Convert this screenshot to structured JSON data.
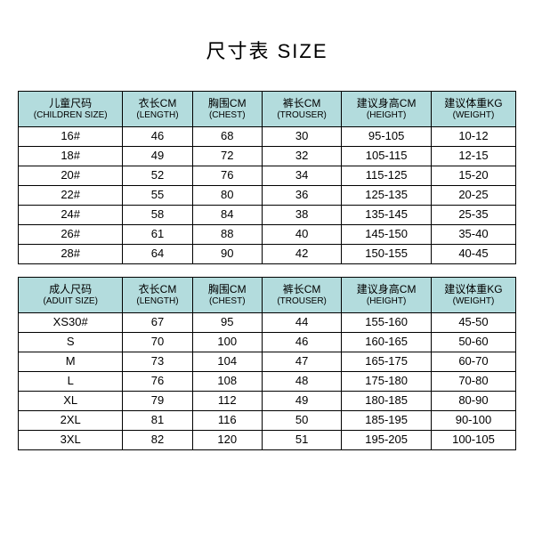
{
  "title": "尺寸表 SIZE",
  "colors": {
    "header_bg": "#b3dcdd",
    "border": "#000000",
    "background": "#ffffff",
    "text": "#000000"
  },
  "columns": [
    {
      "cn_child": "儿童尺码",
      "cn_adult": "成人尺码",
      "en_child": "(CHILDREN SIZE)",
      "en_adult": "(ADUIT SIZE)"
    },
    {
      "cn": "衣长CM",
      "en": "(LENGTH)"
    },
    {
      "cn": "胸围CM",
      "en": "(CHEST)"
    },
    {
      "cn": "裤长CM",
      "en": "(TROUSER)"
    },
    {
      "cn": "建议身高CM",
      "en": "(HEIGHT)"
    },
    {
      "cn": "建议体重KG",
      "en": "(WEIGHT)"
    }
  ],
  "children_rows": [
    [
      "16#",
      "46",
      "68",
      "30",
      "95-105",
      "10-12"
    ],
    [
      "18#",
      "49",
      "72",
      "32",
      "105-115",
      "12-15"
    ],
    [
      "20#",
      "52",
      "76",
      "34",
      "115-125",
      "15-20"
    ],
    [
      "22#",
      "55",
      "80",
      "36",
      "125-135",
      "20-25"
    ],
    [
      "24#",
      "58",
      "84",
      "38",
      "135-145",
      "25-35"
    ],
    [
      "26#",
      "61",
      "88",
      "40",
      "145-150",
      "35-40"
    ],
    [
      "28#",
      "64",
      "90",
      "42",
      "150-155",
      "40-45"
    ]
  ],
  "adult_rows": [
    [
      "XS30#",
      "67",
      "95",
      "44",
      "155-160",
      "45-50"
    ],
    [
      "S",
      "70",
      "100",
      "46",
      "160-165",
      "50-60"
    ],
    [
      "M",
      "73",
      "104",
      "47",
      "165-175",
      "60-70"
    ],
    [
      "L",
      "76",
      "108",
      "48",
      "175-180",
      "70-80"
    ],
    [
      "XL",
      "79",
      "112",
      "49",
      "180-185",
      "80-90"
    ],
    [
      "2XL",
      "81",
      "116",
      "50",
      "185-195",
      "90-100"
    ],
    [
      "3XL",
      "82",
      "120",
      "51",
      "195-205",
      "100-105"
    ]
  ]
}
